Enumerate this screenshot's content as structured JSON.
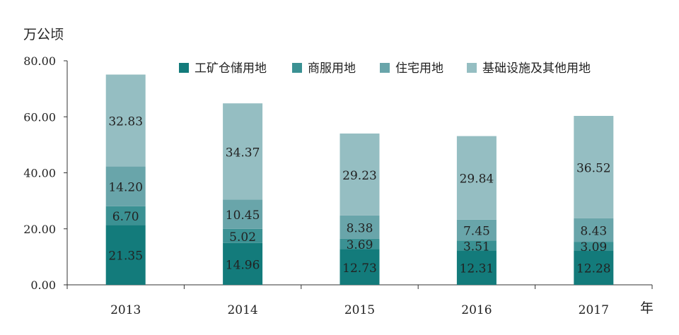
{
  "chart_data": {
    "type": "bar",
    "stacked": true,
    "categories": [
      "2013",
      "2014",
      "2015",
      "2016",
      "2017"
    ],
    "series": [
      {
        "name": "工矿仓储用地",
        "color": "#137b7b",
        "values": [
          21.35,
          14.96,
          12.73,
          12.31,
          12.28
        ]
      },
      {
        "name": "商服用地",
        "color": "#3b9193",
        "values": [
          6.7,
          5.02,
          3.69,
          3.51,
          3.09
        ]
      },
      {
        "name": "住宅用地",
        "color": "#69a5aa",
        "values": [
          14.2,
          10.45,
          8.38,
          7.45,
          8.43
        ]
      },
      {
        "name": "基础设施及其他用地",
        "color": "#95bec2",
        "values": [
          32.83,
          34.37,
          29.23,
          29.84,
          36.52
        ]
      }
    ],
    "ylabel": "万公顷",
    "xlabel": "年",
    "ylim": [
      0,
      80
    ],
    "yticks": [
      "0.00",
      "20.00",
      "40.00",
      "60.00",
      "80.00"
    ],
    "grid": false,
    "legend": "top-right",
    "value_labels": [
      [
        "21.35",
        "14.96",
        "12.73",
        "12.31",
        "12.28"
      ],
      [
        "6.70",
        "5.02",
        "3.69",
        "3.51",
        "3.09"
      ],
      [
        "14.20",
        "10.45",
        "8.38",
        "7.45",
        "8.43"
      ],
      [
        "32.83",
        "34.37",
        "29.23",
        "29.84",
        "36.52"
      ]
    ]
  }
}
